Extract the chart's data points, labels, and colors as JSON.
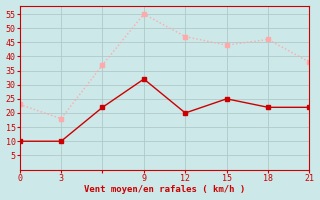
{
  "x": [
    0,
    3,
    6,
    9,
    12,
    15,
    18,
    21
  ],
  "wind_avg": [
    10,
    10,
    22,
    32,
    20,
    25,
    22,
    22
  ],
  "wind_gust": [
    23,
    18,
    37,
    55,
    47,
    44,
    46,
    38
  ],
  "xlabel": "Vent moyen/en rafales ( km/h )",
  "ylim": [
    0,
    58
  ],
  "xlim": [
    0,
    21
  ],
  "yticks": [
    5,
    10,
    15,
    20,
    25,
    30,
    35,
    40,
    45,
    50,
    55
  ],
  "xticks": [
    0,
    3,
    6,
    9,
    12,
    15,
    18,
    21
  ],
  "xtick_labels": [
    "0",
    "3",
    "",
    "9",
    "12",
    "15",
    "18",
    "21"
  ],
  "grid_color": "#b0c8c8",
  "bg_color": "#cce8e8",
  "line_avg_color": "#cc0000",
  "line_gust_color": "#ffaaaa",
  "marker_size": 2.5,
  "line_width": 1.0
}
